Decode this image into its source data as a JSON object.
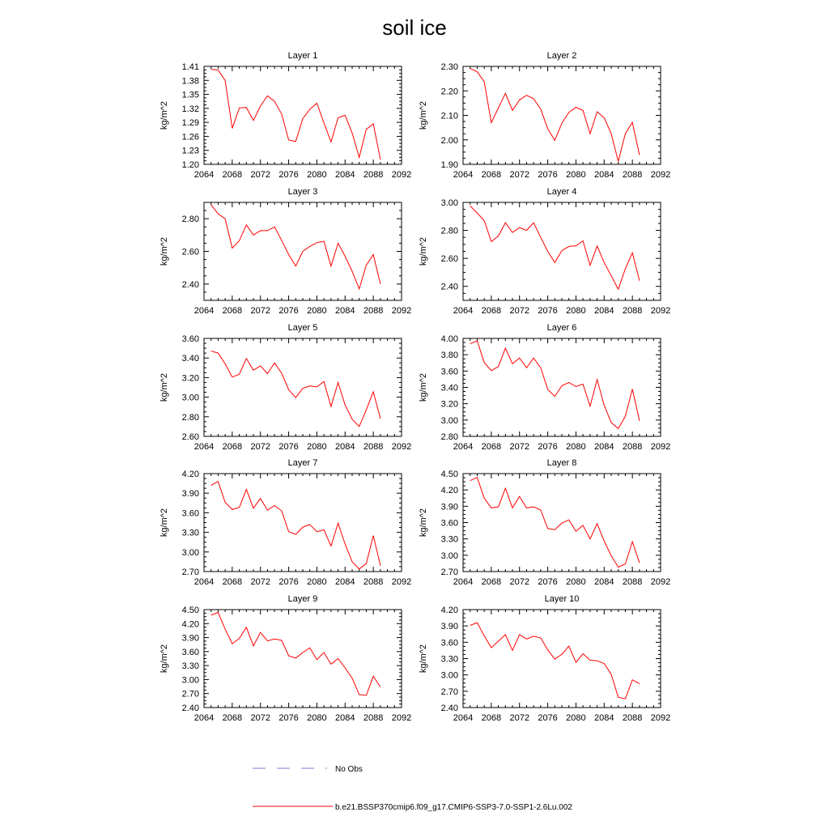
{
  "title": "soil ice",
  "colors": {
    "model_line": "#ff0000",
    "obs_line": "#7b7bd6",
    "axis": "#000000"
  },
  "legend": {
    "obs_label": "No Obs",
    "model_label": "b.e21.BSSP370cmip6.f09_g17.CMIP6-SSP3-7.0-SSP1-2.6Lu.002"
  },
  "chart_data": [
    {
      "type": "line",
      "title": "Layer 1",
      "xlabel": "",
      "ylabel": "kg/m^2",
      "xlim": [
        2064,
        2092
      ],
      "xticks": [
        "2064",
        "2068",
        "2072",
        "2076",
        "2080",
        "2084",
        "2088",
        "2092"
      ],
      "ylim": [
        1.2,
        1.41
      ],
      "yticks": [
        "1.20",
        "1.23",
        "1.26",
        "1.29",
        "1.32",
        "1.35",
        "1.38",
        "1.41"
      ],
      "series": [
        {
          "x": [
            2065,
            2066,
            2067,
            2068,
            2069,
            2070,
            2071,
            2072,
            2073,
            2074,
            2075,
            2076,
            2077,
            2078,
            2079,
            2080,
            2081,
            2082,
            2083,
            2084,
            2085,
            2086,
            2087,
            2088,
            2089
          ],
          "values": [
            1.404,
            1.402,
            1.38,
            1.277,
            1.321,
            1.322,
            1.294,
            1.325,
            1.347,
            1.335,
            1.308,
            1.252,
            1.249,
            1.298,
            1.318,
            1.331,
            1.289,
            1.248,
            1.3,
            1.305,
            1.267,
            1.215,
            1.275,
            1.287,
            1.21
          ]
        }
      ]
    },
    {
      "type": "line",
      "title": "Layer 2",
      "xlabel": "",
      "ylabel": "kg/m^2",
      "xlim": [
        2064,
        2092
      ],
      "xticks": [
        "2064",
        "2068",
        "2072",
        "2076",
        "2080",
        "2084",
        "2088",
        "2092"
      ],
      "ylim": [
        1.9,
        2.3
      ],
      "yticks": [
        "1.90",
        "2.00",
        "2.10",
        "2.20",
        "2.30"
      ],
      "series": [
        {
          "x": [
            2065,
            2066,
            2067,
            2068,
            2069,
            2070,
            2071,
            2072,
            2073,
            2074,
            2075,
            2076,
            2077,
            2078,
            2079,
            2080,
            2081,
            2082,
            2083,
            2084,
            2085,
            2086,
            2087,
            2088,
            2089
          ],
          "values": [
            2.292,
            2.278,
            2.238,
            2.07,
            2.13,
            2.19,
            2.12,
            2.163,
            2.182,
            2.168,
            2.125,
            2.045,
            1.998,
            2.068,
            2.112,
            2.133,
            2.12,
            2.025,
            2.115,
            2.09,
            2.025,
            1.912,
            2.025,
            2.072,
            1.938
          ]
        }
      ]
    },
    {
      "type": "line",
      "title": "Layer 3",
      "xlabel": "",
      "ylabel": "kg/m^2",
      "xlim": [
        2064,
        2092
      ],
      "xticks": [
        "2064",
        "2068",
        "2072",
        "2076",
        "2080",
        "2084",
        "2088",
        "2092"
      ],
      "ylim": [
        2.3,
        2.9
      ],
      "yticks": [
        "2.40",
        "2.60",
        "2.80"
      ],
      "series": [
        {
          "x": [
            2065,
            2066,
            2067,
            2068,
            2069,
            2070,
            2071,
            2072,
            2073,
            2074,
            2075,
            2076,
            2077,
            2078,
            2079,
            2080,
            2081,
            2082,
            2083,
            2084,
            2085,
            2086,
            2087,
            2088,
            2089
          ],
          "values": [
            2.885,
            2.83,
            2.8,
            2.62,
            2.665,
            2.762,
            2.7,
            2.727,
            2.727,
            2.75,
            2.668,
            2.58,
            2.51,
            2.6,
            2.63,
            2.653,
            2.662,
            2.51,
            2.65,
            2.57,
            2.478,
            2.37,
            2.515,
            2.58,
            2.4
          ]
        }
      ]
    },
    {
      "type": "line",
      "title": "Layer 4",
      "xlabel": "",
      "ylabel": "kg/m^2",
      "xlim": [
        2064,
        2092
      ],
      "xticks": [
        "2064",
        "2068",
        "2072",
        "2076",
        "2080",
        "2084",
        "2088",
        "2092"
      ],
      "ylim": [
        2.3,
        3.0
      ],
      "yticks": [
        "2.40",
        "2.60",
        "2.80",
        "3.00"
      ],
      "series": [
        {
          "x": [
            2065,
            2066,
            2067,
            2068,
            2069,
            2070,
            2071,
            2072,
            2073,
            2074,
            2075,
            2076,
            2077,
            2078,
            2079,
            2080,
            2081,
            2082,
            2083,
            2084,
            2085,
            2086,
            2087,
            2088,
            2089
          ],
          "values": [
            2.975,
            2.925,
            2.87,
            2.72,
            2.76,
            2.855,
            2.785,
            2.82,
            2.8,
            2.855,
            2.75,
            2.65,
            2.57,
            2.655,
            2.685,
            2.69,
            2.725,
            2.55,
            2.688,
            2.57,
            2.475,
            2.38,
            2.525,
            2.64,
            2.44
          ]
        }
      ]
    },
    {
      "type": "line",
      "title": "Layer 5",
      "xlabel": "",
      "ylabel": "kg/m^2",
      "xlim": [
        2064,
        2092
      ],
      "xticks": [
        "2064",
        "2068",
        "2072",
        "2076",
        "2080",
        "2084",
        "2088",
        "2092"
      ],
      "ylim": [
        2.6,
        3.6
      ],
      "yticks": [
        "2.60",
        "2.80",
        "3.00",
        "3.20",
        "3.40",
        "3.60"
      ],
      "series": [
        {
          "x": [
            2065,
            2066,
            2067,
            2068,
            2069,
            2070,
            2071,
            2072,
            2073,
            2074,
            2075,
            2076,
            2077,
            2078,
            2079,
            2080,
            2081,
            2082,
            2083,
            2084,
            2085,
            2086,
            2087,
            2088,
            2089
          ],
          "values": [
            3.47,
            3.45,
            3.34,
            3.205,
            3.235,
            3.395,
            3.275,
            3.32,
            3.24,
            3.35,
            3.245,
            3.075,
            2.995,
            3.09,
            3.115,
            3.105,
            3.16,
            2.905,
            3.15,
            2.92,
            2.775,
            2.7,
            2.87,
            3.055,
            2.78
          ]
        }
      ]
    },
    {
      "type": "line",
      "title": "Layer 6",
      "xlabel": "",
      "ylabel": "kg/m^2",
      "xlim": [
        2064,
        2092
      ],
      "xticks": [
        "2064",
        "2068",
        "2072",
        "2076",
        "2080",
        "2084",
        "2088",
        "2092"
      ],
      "ylim": [
        2.8,
        4.0
      ],
      "yticks": [
        "2.80",
        "3.00",
        "3.20",
        "3.40",
        "3.60",
        "3.80",
        "4.00"
      ],
      "series": [
        {
          "x": [
            2065,
            2066,
            2067,
            2068,
            2069,
            2070,
            2071,
            2072,
            2073,
            2074,
            2075,
            2076,
            2077,
            2078,
            2079,
            2080,
            2081,
            2082,
            2083,
            2084,
            2085,
            2086,
            2087,
            2088,
            2089
          ],
          "values": [
            3.935,
            3.97,
            3.705,
            3.605,
            3.655,
            3.88,
            3.69,
            3.76,
            3.64,
            3.76,
            3.64,
            3.375,
            3.29,
            3.42,
            3.46,
            3.41,
            3.44,
            3.17,
            3.495,
            3.18,
            2.97,
            2.895,
            3.045,
            3.38,
            2.99
          ]
        }
      ]
    },
    {
      "type": "line",
      "title": "Layer 7",
      "xlabel": "",
      "ylabel": "kg/m^2",
      "xlim": [
        2064,
        2092
      ],
      "xticks": [
        "2064",
        "2068",
        "2072",
        "2076",
        "2080",
        "2084",
        "2088",
        "2092"
      ],
      "ylim": [
        2.7,
        4.2
      ],
      "yticks": [
        "2.70",
        "3.00",
        "3.30",
        "3.60",
        "3.90",
        "4.20"
      ],
      "series": [
        {
          "x": [
            2065,
            2066,
            2067,
            2068,
            2069,
            2070,
            2071,
            2072,
            2073,
            2074,
            2075,
            2076,
            2077,
            2078,
            2079,
            2080,
            2081,
            2082,
            2083,
            2084,
            2085,
            2086,
            2087,
            2088,
            2089
          ],
          "values": [
            4.02,
            4.08,
            3.76,
            3.65,
            3.68,
            3.96,
            3.67,
            3.82,
            3.64,
            3.71,
            3.63,
            3.31,
            3.27,
            3.38,
            3.42,
            3.31,
            3.34,
            3.09,
            3.44,
            3.12,
            2.85,
            2.74,
            2.82,
            3.25,
            2.79
          ]
        }
      ]
    },
    {
      "type": "line",
      "title": "Layer 8",
      "xlabel": "",
      "ylabel": "kg/m^2",
      "xlim": [
        2064,
        2092
      ],
      "xticks": [
        "2064",
        "2068",
        "2072",
        "2076",
        "2080",
        "2084",
        "2088",
        "2092"
      ],
      "ylim": [
        2.7,
        4.5
      ],
      "yticks": [
        "2.70",
        "3.00",
        "3.30",
        "3.60",
        "3.90",
        "4.20",
        "4.50"
      ],
      "series": [
        {
          "x": [
            2065,
            2066,
            2067,
            2068,
            2069,
            2070,
            2071,
            2072,
            2073,
            2074,
            2075,
            2076,
            2077,
            2078,
            2079,
            2080,
            2081,
            2082,
            2083,
            2084,
            2085,
            2086,
            2087,
            2088,
            2089
          ],
          "values": [
            4.37,
            4.43,
            4.05,
            3.87,
            3.89,
            4.23,
            3.87,
            4.08,
            3.87,
            3.89,
            3.83,
            3.49,
            3.47,
            3.59,
            3.65,
            3.44,
            3.55,
            3.3,
            3.58,
            3.26,
            2.99,
            2.78,
            2.84,
            3.25,
            2.86
          ]
        }
      ]
    },
    {
      "type": "line",
      "title": "Layer 9",
      "xlabel": "",
      "ylabel": "kg/m^2",
      "xlim": [
        2064,
        2092
      ],
      "xticks": [
        "2064",
        "2068",
        "2072",
        "2076",
        "2080",
        "2084",
        "2088",
        "2092"
      ],
      "ylim": [
        2.4,
        4.5
      ],
      "yticks": [
        "2.40",
        "2.70",
        "3.00",
        "3.30",
        "3.60",
        "3.90",
        "4.20",
        "4.50"
      ],
      "series": [
        {
          "x": [
            2065,
            2066,
            2067,
            2068,
            2069,
            2070,
            2071,
            2072,
            2073,
            2074,
            2075,
            2076,
            2077,
            2078,
            2079,
            2080,
            2081,
            2082,
            2083,
            2084,
            2085,
            2086,
            2087,
            2088,
            2089
          ],
          "values": [
            4.38,
            4.44,
            4.08,
            3.77,
            3.88,
            4.12,
            3.72,
            4.01,
            3.83,
            3.87,
            3.84,
            3.51,
            3.46,
            3.58,
            3.68,
            3.43,
            3.58,
            3.33,
            3.45,
            3.25,
            3.03,
            2.68,
            2.66,
            3.07,
            2.84
          ]
        }
      ]
    },
    {
      "type": "line",
      "title": "Layer 10",
      "xlabel": "",
      "ylabel": "kg/m^2",
      "xlim": [
        2064,
        2092
      ],
      "xticks": [
        "2064",
        "2068",
        "2072",
        "2076",
        "2080",
        "2084",
        "2088",
        "2092"
      ],
      "ylim": [
        2.4,
        4.2
      ],
      "yticks": [
        "2.40",
        "2.70",
        "3.00",
        "3.30",
        "3.60",
        "3.90",
        "4.20"
      ],
      "series": [
        {
          "x": [
            2065,
            2066,
            2067,
            2068,
            2069,
            2070,
            2071,
            2072,
            2073,
            2074,
            2075,
            2076,
            2077,
            2078,
            2079,
            2080,
            2081,
            2082,
            2083,
            2084,
            2085,
            2086,
            2087,
            2088,
            2089
          ],
          "values": [
            3.91,
            3.96,
            3.72,
            3.5,
            3.62,
            3.74,
            3.45,
            3.74,
            3.66,
            3.71,
            3.68,
            3.46,
            3.29,
            3.38,
            3.53,
            3.23,
            3.39,
            3.27,
            3.26,
            3.21,
            3.01,
            2.59,
            2.56,
            2.91,
            2.84
          ]
        }
      ]
    }
  ]
}
